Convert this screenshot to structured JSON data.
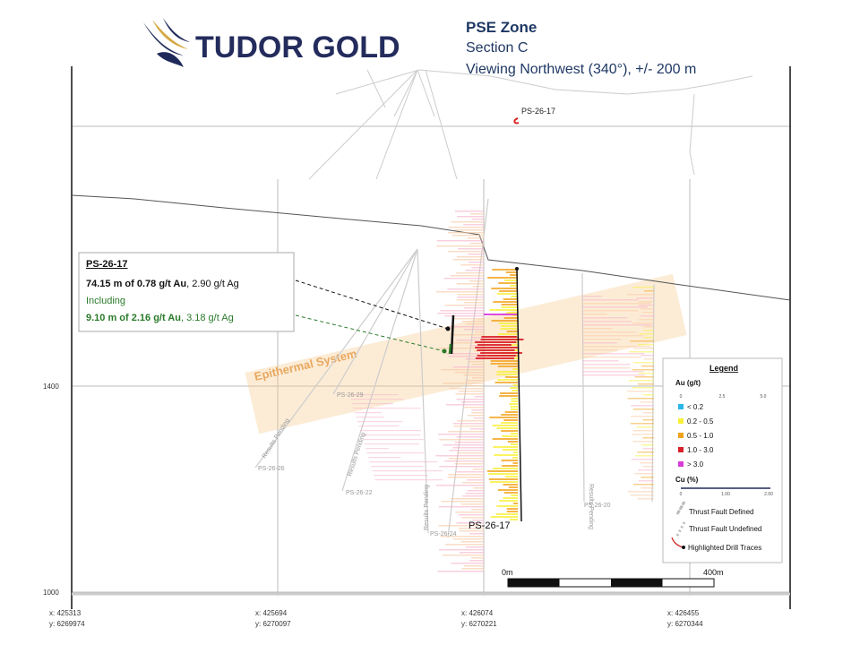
{
  "header": {
    "logo_text": "TUDOR GOLD",
    "title": "PSE Zone",
    "section": "Section C",
    "view": "Viewing Northwest (340°), +/- 200 m"
  },
  "callout": {
    "hole": "PS-26-17",
    "interval1": "74.15 m of 0.78 g/t Au",
    "interval1_ag": ", 2.90 g/t Ag",
    "including": "Including",
    "interval2": "9.10 m of 2.16 g/t Au",
    "interval2_ag": ", 3.18 g/t Ag"
  },
  "section": {
    "zone_label": "Epithermal System",
    "collar_label": "PS-26-17",
    "hole_label": "PS-26-17",
    "drill_holes": [
      {
        "label": "PS-26-29"
      },
      {
        "label": "PS-26-26",
        "status": "Results Pending"
      },
      {
        "label": "PS-26-22",
        "status": "Results Pending"
      },
      {
        "label": "PS-26-24",
        "status": "Results Pending"
      },
      {
        "label": "PS-26-20",
        "status": "Results Pending"
      }
    ],
    "elevations": [
      "1400",
      "1000"
    ],
    "coordinates": [
      {
        "x": "x: 425313",
        "y": "y: 6269974"
      },
      {
        "x": "x: 425694",
        "y": "y: 6270097"
      },
      {
        "x": "x: 426074",
        "y": "y: 6270221"
      },
      {
        "x": "x: 426455",
        "y": "y: 6270344"
      }
    ]
  },
  "legend": {
    "title": "Legend",
    "au_label": "Au (g/t)",
    "au_scale": [
      "0",
      "2.5",
      "5.0"
    ],
    "classes": [
      "< 0.2",
      "0.2 - 0.5",
      "0.5 - 1.0",
      "1.0 - 3.0",
      "> 3.0"
    ],
    "cu_label": "Cu (%)",
    "cu_scale": [
      "0",
      "1.00",
      "2.00"
    ],
    "fault_defined": "Thrust Fault Defined",
    "fault_undefined": "Thrust Fault Undefined",
    "highlighted": "Highlighted Drill Traces"
  },
  "scale": {
    "start": "0m",
    "end": "400m"
  }
}
